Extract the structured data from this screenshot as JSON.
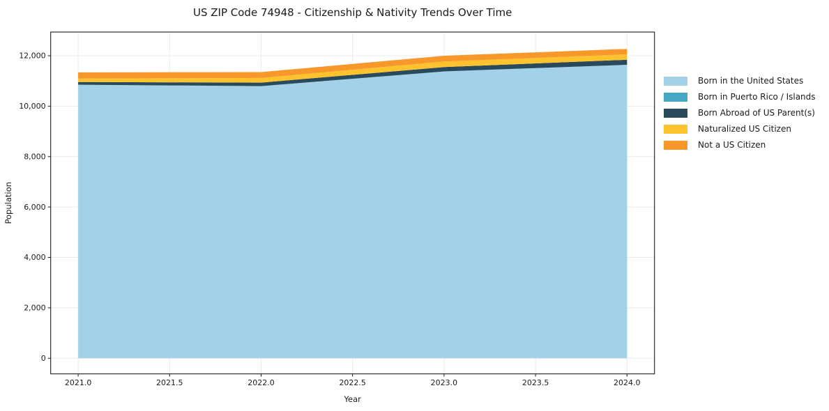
{
  "chart_data": {
    "type": "area",
    "stacked": true,
    "title": "US ZIP Code 74948 - Citizenship & Nativity Trends Over Time",
    "xlabel": "Year",
    "ylabel": "Population",
    "x": [
      2021,
      2022,
      2023,
      2024
    ],
    "series": [
      {
        "name": "Born in the United States",
        "color": "#a3d1e8",
        "values": [
          10850,
          10795,
          11380,
          11640
        ]
      },
      {
        "name": "Born in Puerto Rico / Islands",
        "color": "#44a7c4",
        "values": [
          0,
          0,
          0,
          0
        ]
      },
      {
        "name": "Born Abroad of US Parent(s)",
        "color": "#29495c",
        "values": [
          110,
          140,
          170,
          200
        ]
      },
      {
        "name": "Naturalized US Citizen",
        "color": "#fdc32f",
        "values": [
          135,
          185,
          220,
          215
        ]
      },
      {
        "name": "Not a US Citizen",
        "color": "#f8982a",
        "values": [
          245,
          230,
          230,
          215
        ]
      }
    ],
    "xlim": [
      2020.85,
      2024.15
    ],
    "ylim": [
      -620,
      12940
    ],
    "xticks": {
      "values": [
        2021.0,
        2021.5,
        2022.0,
        2022.5,
        2023.0,
        2023.5,
        2024.0
      ],
      "labels": [
        "2021.0",
        "2021.5",
        "2022.0",
        "2022.5",
        "2023.0",
        "2023.5",
        "2024.0"
      ]
    },
    "yticks": {
      "values": [
        0,
        2000,
        4000,
        6000,
        8000,
        10000,
        12000
      ],
      "labels": [
        "0",
        "2,000",
        "4,000",
        "6,000",
        "8,000",
        "10,000",
        "12,000"
      ]
    },
    "grid": true,
    "grid_color": "#ebebeb",
    "spine_color": "#1a1a1a",
    "legend_position": "right-outside"
  }
}
